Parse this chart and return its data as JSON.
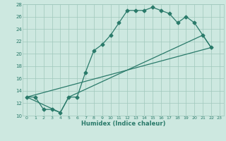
{
  "xlabel": "Humidex (Indice chaleur)",
  "bg_color": "#cde8e0",
  "grid_color": "#a0c8bc",
  "line_color": "#2a7a6a",
  "xlim": [
    -0.5,
    23.5
  ],
  "ylim": [
    10,
    28
  ],
  "xticks": [
    0,
    1,
    2,
    3,
    4,
    5,
    6,
    7,
    8,
    9,
    10,
    11,
    12,
    13,
    14,
    15,
    16,
    17,
    18,
    19,
    20,
    21,
    22,
    23
  ],
  "yticks": [
    10,
    12,
    14,
    16,
    18,
    20,
    22,
    24,
    26,
    28
  ],
  "line1_x": [
    0,
    1,
    2,
    3,
    4,
    5,
    6,
    7,
    8,
    9,
    10,
    11,
    12,
    13,
    14,
    15,
    16,
    17,
    18,
    19,
    20,
    21,
    22
  ],
  "line1_y": [
    13,
    13,
    11,
    11,
    10.5,
    13,
    13,
    17,
    20.5,
    21.5,
    23,
    25,
    27,
    27,
    27,
    27.5,
    27,
    26.5,
    25,
    26,
    25,
    23,
    21
  ],
  "line2_x": [
    0,
    4,
    5,
    21,
    22
  ],
  "line2_y": [
    13,
    10.5,
    13,
    23,
    21
  ],
  "line3_x": [
    0,
    22
  ],
  "line3_y": [
    13,
    21
  ]
}
